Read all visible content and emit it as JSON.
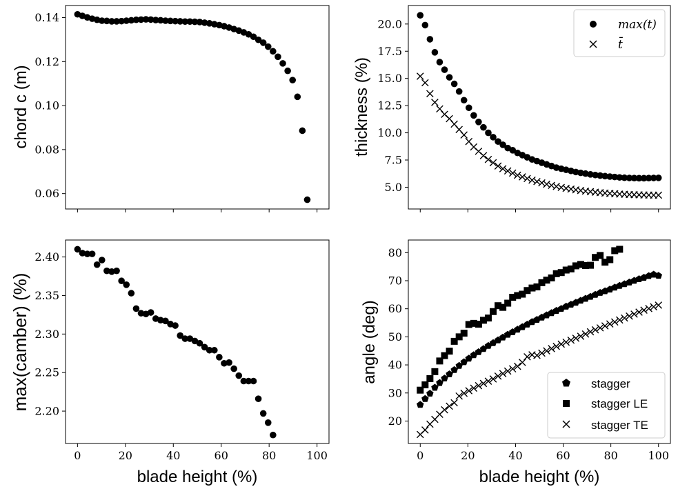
{
  "chart_data": [
    {
      "id": "chord",
      "type": "scatter",
      "ylabel": "chord c (m)",
      "xlim": [
        -5,
        105
      ],
      "ylim": [
        0.053,
        0.1455
      ],
      "xticks": [
        0,
        20,
        40,
        60,
        80,
        100
      ],
      "xtick_labels_visible": false,
      "yticks": [
        0.06,
        0.08,
        0.1,
        0.12,
        0.14
      ],
      "ytick_labels": [
        "0.06",
        "0.08",
        "0.10",
        "0.12",
        "0.14"
      ],
      "series": [
        {
          "marker": "circle",
          "x": [
            0,
            2.04,
            4.08,
            6.12,
            8.16,
            10.2,
            12.24,
            14.29,
            16.33,
            18.37,
            20.41,
            22.45,
            24.49,
            26.53,
            28.57,
            30.61,
            32.65,
            34.69,
            36.73,
            38.78,
            40.82,
            42.86,
            44.9,
            46.94,
            48.98,
            51.02,
            53.06,
            55.1,
            57.14,
            59.18,
            61.22,
            63.27,
            65.31,
            67.35,
            69.39,
            71.43,
            73.47,
            75.51,
            77.55,
            79.59,
            81.63,
            83.67,
            85.71,
            87.76,
            89.8,
            91.84,
            93.88,
            95.92,
            97.96,
            100
          ],
          "y": [
            0.1415,
            0.1408,
            0.1401,
            0.1395,
            0.139,
            0.1386,
            0.1385,
            0.1383,
            0.1383,
            0.1384,
            0.1386,
            0.1388,
            0.139,
            0.1391,
            0.1392,
            0.1391,
            0.1389,
            0.1388,
            0.1386,
            0.1385,
            0.1384,
            0.1383,
            0.1382,
            0.1382,
            0.1381,
            0.138,
            0.1377,
            0.1374,
            0.137,
            0.1366,
            0.1361,
            0.1355,
            0.1348,
            0.1341,
            0.1333,
            0.1324,
            0.1313,
            0.1299,
            0.1286,
            0.1268,
            0.1247,
            0.1222,
            0.1192,
            0.1158,
            0.1116,
            0.104,
            0.0886,
            0.0572,
            null,
            null
          ]
        }
      ]
    },
    {
      "id": "thickness",
      "type": "scatter",
      "ylabel": "thickness (%)",
      "xlim": [
        -5,
        105
      ],
      "ylim": [
        3.0,
        21.7
      ],
      "xticks": [
        0,
        20,
        40,
        60,
        80,
        100
      ],
      "xtick_labels_visible": false,
      "yticks": [
        5.0,
        7.5,
        10.0,
        12.5,
        15.0,
        17.5,
        20.0
      ],
      "ytick_labels": [
        "5.0",
        "7.5",
        "10.0",
        "12.5",
        "15.0",
        "17.5",
        "20.0"
      ],
      "legend_position": "top-right",
      "series": [
        {
          "name": "max(t)",
          "marker": "circle",
          "x": [
            0,
            2.04,
            4.08,
            6.12,
            8.16,
            10.2,
            12.24,
            14.29,
            16.33,
            18.37,
            20.41,
            22.45,
            24.49,
            26.53,
            28.57,
            30.61,
            32.65,
            34.69,
            36.73,
            38.78,
            40.82,
            42.86,
            44.9,
            46.94,
            48.98,
            51.02,
            53.06,
            55.1,
            57.14,
            59.18,
            61.22,
            63.27,
            65.31,
            67.35,
            69.39,
            71.43,
            73.47,
            75.51,
            77.55,
            79.59,
            81.63,
            83.67,
            85.71,
            87.76,
            89.8,
            91.84,
            93.88,
            95.92,
            97.96,
            100
          ],
          "y": [
            20.8,
            19.9,
            18.6,
            17.4,
            16.5,
            15.8,
            15.1,
            14.5,
            13.8,
            13.0,
            12.3,
            11.6,
            11.0,
            10.5,
            10.0,
            9.6,
            9.2,
            8.9,
            8.6,
            8.4,
            8.15,
            7.95,
            7.75,
            7.55,
            7.4,
            7.25,
            7.1,
            6.95,
            6.8,
            6.7,
            6.6,
            6.5,
            6.4,
            6.32,
            6.25,
            6.18,
            6.12,
            6.07,
            6.02,
            5.98,
            5.94,
            5.9,
            5.87,
            5.85,
            5.84,
            5.83,
            5.83,
            5.84,
            5.85,
            5.86
          ]
        },
        {
          "name": "t̄",
          "marker": "x",
          "x": [
            0,
            2.04,
            4.08,
            6.12,
            8.16,
            10.2,
            12.24,
            14.29,
            16.33,
            18.37,
            20.41,
            22.45,
            24.49,
            26.53,
            28.57,
            30.61,
            32.65,
            34.69,
            36.73,
            38.78,
            40.82,
            42.86,
            44.9,
            46.94,
            48.98,
            51.02,
            53.06,
            55.1,
            57.14,
            59.18,
            61.22,
            63.27,
            65.31,
            67.35,
            69.39,
            71.43,
            73.47,
            75.51,
            77.55,
            79.59,
            81.63,
            83.67,
            85.71,
            87.76,
            89.8,
            91.84,
            93.88,
            95.92,
            97.96,
            100
          ],
          "y": [
            15.2,
            14.6,
            13.6,
            12.8,
            12.2,
            11.7,
            11.3,
            10.8,
            10.3,
            9.8,
            9.2,
            8.7,
            8.3,
            7.9,
            7.55,
            7.25,
            6.95,
            6.7,
            6.5,
            6.3,
            6.1,
            5.95,
            5.8,
            5.65,
            5.52,
            5.4,
            5.28,
            5.17,
            5.07,
            4.98,
            4.9,
            4.83,
            4.76,
            4.7,
            4.64,
            4.59,
            4.54,
            4.5,
            4.46,
            4.43,
            4.4,
            4.37,
            4.35,
            4.33,
            4.31,
            4.3,
            4.29,
            4.28,
            4.27,
            4.27
          ]
        }
      ]
    },
    {
      "id": "camber",
      "type": "scatter",
      "ylabel": "max(camber) (%)",
      "xlabel": "blade height (%)",
      "xlim": [
        -5,
        105
      ],
      "ylim": [
        2.158,
        2.422
      ],
      "xticks": [
        0,
        20,
        40,
        60,
        80,
        100
      ],
      "xtick_labels": [
        "0",
        "20",
        "40",
        "60",
        "80",
        "100"
      ],
      "yticks": [
        2.2,
        2.25,
        2.3,
        2.35,
        2.4
      ],
      "ytick_labels": [
        "2.20",
        "2.25",
        "2.30",
        "2.35",
        "2.40"
      ],
      "series": [
        {
          "marker": "circle",
          "x": [
            0,
            2.04,
            4.08,
            6.12,
            8.16,
            10.2,
            12.24,
            14.29,
            16.33,
            18.37,
            20.41,
            22.45,
            24.49,
            26.53,
            28.57,
            30.61,
            32.65,
            34.69,
            36.73,
            38.78,
            40.82,
            42.86,
            44.9,
            46.94,
            48.98,
            51.02,
            53.06,
            55.1,
            57.14,
            59.18,
            61.22,
            63.27,
            65.31,
            67.35,
            69.39,
            71.43,
            73.47,
            75.51,
            77.55,
            79.59,
            81.63,
            83.67,
            85.71,
            87.76,
            89.8,
            91.84,
            93.88,
            95.92,
            97.96,
            100
          ],
          "y": [
            2.41,
            2.405,
            2.404,
            2.404,
            2.39,
            2.396,
            2.382,
            2.381,
            2.382,
            2.369,
            2.364,
            2.353,
            2.333,
            2.327,
            2.326,
            2.328,
            2.32,
            2.318,
            2.317,
            2.313,
            2.311,
            2.298,
            2.294,
            2.294,
            2.291,
            2.288,
            2.283,
            2.279,
            2.279,
            2.27,
            2.262,
            2.263,
            2.255,
            2.246,
            2.239,
            2.239,
            2.239,
            2.216,
            2.197,
            2.185,
            2.169,
            null,
            null,
            null,
            null,
            null,
            null,
            null,
            null,
            null
          ]
        }
      ]
    },
    {
      "id": "angle",
      "type": "scatter",
      "ylabel": "angle (deg)",
      "xlabel": "blade height (%)",
      "xlim": [
        -5,
        105
      ],
      "ylim": [
        12.0,
        84.5
      ],
      "xticks": [
        0,
        20,
        40,
        60,
        80,
        100
      ],
      "xtick_labels": [
        "0",
        "20",
        "40",
        "60",
        "80",
        "100"
      ],
      "yticks": [
        20,
        30,
        40,
        50,
        60,
        70,
        80
      ],
      "ytick_labels": [
        "20",
        "30",
        "40",
        "50",
        "60",
        "70",
        "80"
      ],
      "legend_position": "bottom-right",
      "series": [
        {
          "name": "stagger",
          "marker": "pentagon",
          "x": [
            0,
            2.04,
            4.08,
            6.12,
            8.16,
            10.2,
            12.24,
            14.29,
            16.33,
            18.37,
            20.41,
            22.45,
            24.49,
            26.53,
            28.57,
            30.61,
            32.65,
            34.69,
            36.73,
            38.78,
            40.82,
            42.86,
            44.9,
            46.94,
            48.98,
            51.02,
            53.06,
            55.1,
            57.14,
            59.18,
            61.22,
            63.27,
            65.31,
            67.35,
            69.39,
            71.43,
            73.47,
            75.51,
            77.55,
            79.59,
            81.63,
            83.67,
            85.71,
            87.76,
            89.8,
            91.84,
            93.88,
            95.92,
            97.96,
            100
          ],
          "y": [
            25.8,
            27.9,
            29.8,
            31.9,
            33.6,
            35.2,
            36.7,
            38.2,
            39.7,
            41.0,
            42.3,
            43.5,
            44.6,
            45.7,
            46.8,
            47.8,
            48.8,
            49.8,
            50.8,
            51.7,
            52.6,
            53.5,
            54.4,
            55.3,
            56.1,
            56.9,
            57.7,
            58.5,
            59.3,
            60.0,
            60.8,
            61.5,
            62.2,
            62.9,
            63.6,
            64.3,
            65.0,
            65.7,
            66.3,
            66.9,
            67.6,
            68.2,
            68.8,
            69.4,
            70.0,
            70.6,
            71.1,
            71.7,
            72.2,
            71.8
          ]
        },
        {
          "name": "stagger LE",
          "marker": "square",
          "x": [
            0,
            2.04,
            4.08,
            6.12,
            8.16,
            10.2,
            12.24,
            14.29,
            16.33,
            18.37,
            20.41,
            22.45,
            24.49,
            26.53,
            28.57,
            30.61,
            32.65,
            34.69,
            36.73,
            38.78,
            40.82,
            42.86,
            44.9,
            46.94,
            48.98,
            51.02,
            53.06,
            55.1,
            57.14,
            59.18,
            61.22,
            63.27,
            65.31,
            67.35,
            69.39,
            71.43,
            73.47,
            75.51,
            77.55,
            79.59,
            81.63,
            83.67,
            85.71,
            87.76,
            89.8,
            91.84,
            93.88,
            95.92,
            97.96,
            100
          ],
          "y": [
            31.0,
            32.9,
            35.1,
            37.6,
            41.4,
            43.3,
            44.9,
            48.4,
            50.0,
            51.3,
            54.4,
            54.8,
            54.5,
            55.9,
            56.7,
            59.0,
            61.1,
            60.5,
            62.0,
            64.1,
            64.7,
            65.2,
            66.5,
            67.4,
            67.8,
            69.3,
            70.2,
            71.0,
            72.5,
            72.9,
            73.8,
            74.2,
            75.3,
            75.8,
            75.4,
            75.5,
            78.3,
            79.0,
            76.6,
            77.5,
            80.7,
            81.2,
            null,
            null,
            null,
            null,
            null,
            null,
            null,
            null
          ]
        },
        {
          "name": "stagger TE",
          "marker": "x",
          "x": [
            0,
            2.04,
            4.08,
            6.12,
            8.16,
            10.2,
            12.24,
            14.29,
            16.33,
            18.37,
            20.41,
            22.45,
            24.49,
            26.53,
            28.57,
            30.61,
            32.65,
            34.69,
            36.73,
            38.78,
            40.82,
            42.86,
            44.9,
            46.94,
            48.98,
            51.02,
            53.06,
            55.1,
            57.14,
            59.18,
            61.22,
            63.27,
            65.31,
            67.35,
            69.39,
            71.43,
            73.47,
            75.51,
            77.55,
            79.59,
            81.63,
            83.67,
            85.71,
            87.76,
            89.8,
            91.84,
            93.88,
            95.92,
            97.96,
            100
          ],
          "y": [
            15.2,
            16.8,
            18.9,
            20.6,
            22.4,
            24.0,
            25.3,
            26.5,
            28.9,
            29.9,
            30.8,
            31.7,
            32.6,
            33.4,
            34.2,
            35.0,
            36.0,
            36.9,
            37.8,
            38.6,
            39.5,
            40.9,
            42.9,
            43.6,
            43.4,
            44.2,
            45.0,
            45.8,
            46.6,
            47.4,
            48.1,
            48.8,
            49.5,
            50.2,
            51.0,
            51.8,
            52.5,
            53.2,
            53.9,
            54.6,
            55.3,
            56.0,
            56.7,
            57.4,
            58.1,
            58.8,
            59.5,
            60.1,
            60.7,
            61.3
          ]
        }
      ]
    }
  ]
}
